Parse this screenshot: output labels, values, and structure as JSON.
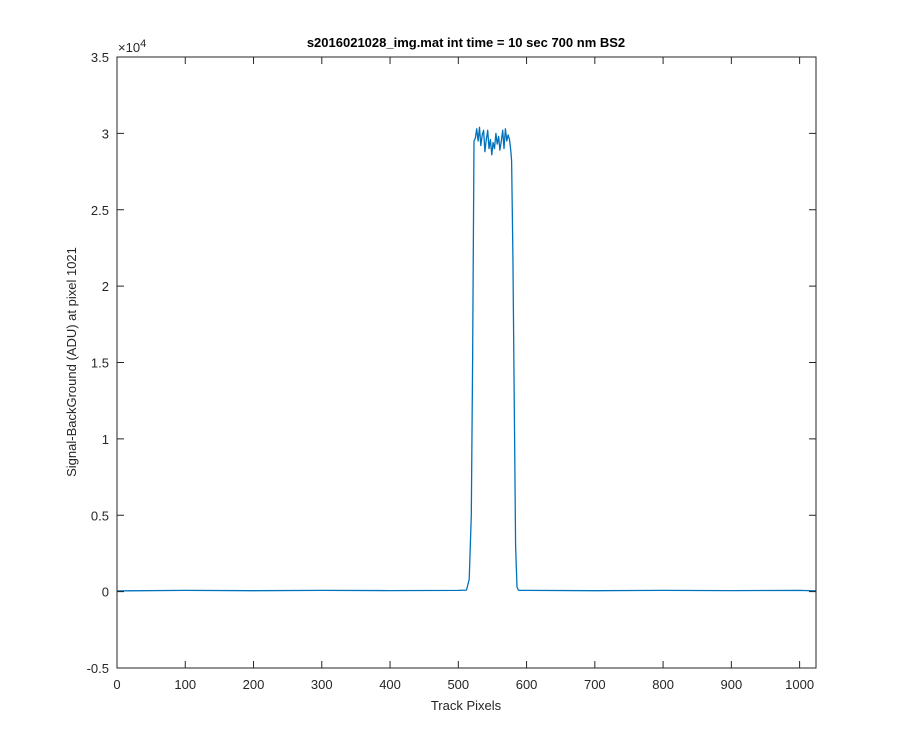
{
  "chart_data": {
    "type": "line",
    "title": "s2016021028_img.mat int time = 10 sec  700 nm BS2",
    "xlabel": "Track Pixels",
    "ylabel": "Signal-BackGround (ADU) at pixel 1021",
    "xlim": [
      0,
      1024
    ],
    "ylim": [
      -0.5,
      3.5
    ],
    "y_multiplier": "×10",
    "y_multiplier_exponent": "4",
    "x_ticks": [
      {
        "value": 0,
        "label": "0"
      },
      {
        "value": 100,
        "label": "100"
      },
      {
        "value": 200,
        "label": "200"
      },
      {
        "value": 300,
        "label": "300"
      },
      {
        "value": 400,
        "label": "400"
      },
      {
        "value": 500,
        "label": "500"
      },
      {
        "value": 600,
        "label": "600"
      },
      {
        "value": 700,
        "label": "700"
      },
      {
        "value": 800,
        "label": "800"
      },
      {
        "value": 900,
        "label": "900"
      },
      {
        "value": 1000,
        "label": "1000"
      }
    ],
    "y_ticks": [
      {
        "value": -0.5,
        "label": "-0.5"
      },
      {
        "value": 0,
        "label": "0"
      },
      {
        "value": 0.5,
        "label": "0.5"
      },
      {
        "value": 1,
        "label": "1"
      },
      {
        "value": 1.5,
        "label": "1.5"
      },
      {
        "value": 2,
        "label": "2"
      },
      {
        "value": 2.5,
        "label": "2.5"
      },
      {
        "value": 3,
        "label": "3"
      },
      {
        "value": 3.5,
        "label": "3.5"
      }
    ],
    "grid": false,
    "box": true,
    "series": [
      {
        "color": "#0072bd",
        "x": [
          0,
          100,
          200,
          300,
          400,
          500,
          512,
          516,
          519,
          521,
          523,
          525,
          527,
          529,
          531,
          533,
          535,
          537,
          539,
          541,
          543,
          545,
          547,
          549,
          551,
          553,
          555,
          557,
          559,
          561,
          563,
          565,
          567,
          569,
          571,
          573,
          575,
          577,
          578,
          580,
          582,
          584,
          586,
          588,
          590,
          600,
          700,
          800,
          900,
          1000,
          1024
        ],
        "y": [
          0.005,
          0.008,
          0.006,
          0.008,
          0.007,
          0.008,
          0.01,
          0.08,
          0.5,
          1.5,
          2.95,
          2.97,
          3.03,
          2.95,
          3.04,
          2.92,
          2.99,
          3.02,
          2.88,
          2.96,
          3.02,
          2.9,
          2.96,
          2.86,
          2.94,
          2.9,
          3.0,
          2.93,
          2.98,
          2.89,
          2.95,
          3.02,
          2.9,
          3.03,
          2.95,
          2.99,
          2.96,
          2.88,
          2.82,
          2.2,
          1.2,
          0.3,
          0.03,
          0.01,
          0.008,
          0.008,
          0.006,
          0.008,
          0.007,
          0.008,
          0.005
        ]
      }
    ]
  }
}
